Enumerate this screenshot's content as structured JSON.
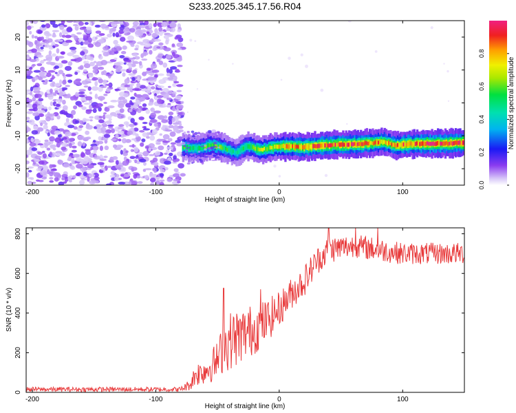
{
  "title": "S233.2025.345.17.56.R04",
  "chart_data": [
    {
      "type": "heatmap",
      "name": "spectrogram",
      "xlabel": "Height of straight line (km)",
      "ylabel": "Frequency (Hz)",
      "xlim": [
        -205,
        150
      ],
      "ylim": [
        -25,
        25
      ],
      "xticks": [
        -200,
        -100,
        0,
        100
      ],
      "yticks": [
        -20,
        -10,
        0,
        10,
        20
      ],
      "colorbar": {
        "label": "Normalized spectral amplitude",
        "range": [
          0,
          1
        ],
        "ticks": [
          0.0,
          0.2,
          0.4,
          0.6,
          0.8
        ]
      },
      "noise_region_x": [
        -205,
        -78
      ],
      "signal_track": {
        "x": [
          -78,
          -65,
          -55,
          -45,
          -35,
          -25,
          -15,
          -5,
          5,
          20,
          40,
          60,
          75,
          85,
          95,
          105,
          150
        ],
        "freq_hz": [
          -13.5,
          -13.8,
          -12.8,
          -13.6,
          -15.2,
          -13.0,
          -14.3,
          -13.5,
          -13.2,
          -13.4,
          -12.8,
          -12.6,
          -12.2,
          -11.8,
          -13.0,
          -12.5,
          -12.2
        ],
        "amplitude": [
          0.6,
          0.55,
          0.65,
          0.6,
          0.5,
          0.6,
          0.7,
          0.75,
          0.85,
          0.9,
          0.95,
          0.95,
          0.9,
          0.85,
          0.9,
          0.95,
          1.0
        ]
      }
    },
    {
      "type": "line",
      "name": "snr",
      "xlabel": "Height of straight line (km)",
      "ylabel": "SNR (10 * v/v)",
      "xlim": [
        -205,
        150
      ],
      "ylim": [
        0,
        830
      ],
      "xticks": [
        -200,
        -100,
        0,
        100
      ],
      "yticks": [
        0,
        200,
        400,
        600,
        800
      ],
      "color": "#e8393a",
      "envelope": {
        "x": [
          -205,
          -80,
          -72,
          -68,
          -60,
          -50,
          -45,
          -40,
          -30,
          -20,
          -10,
          0,
          10,
          20,
          30,
          40,
          60,
          80,
          100,
          120,
          150
        ],
        "mean": [
          15,
          15,
          40,
          90,
          110,
          160,
          230,
          260,
          290,
          320,
          360,
          420,
          500,
          560,
          660,
          720,
          740,
          720,
          700,
          700,
          700
        ],
        "amp": [
          12,
          12,
          30,
          60,
          70,
          100,
          130,
          150,
          140,
          130,
          110,
          90,
          80,
          80,
          70,
          70,
          60,
          60,
          55,
          55,
          55
        ]
      },
      "spikes": [
        {
          "x": -45,
          "y": 525
        },
        {
          "x": -15,
          "y": 520
        },
        {
          "x": 40,
          "y": 830
        },
        {
          "x": 62,
          "y": 830
        },
        {
          "x": 80,
          "y": 830
        }
      ]
    }
  ]
}
